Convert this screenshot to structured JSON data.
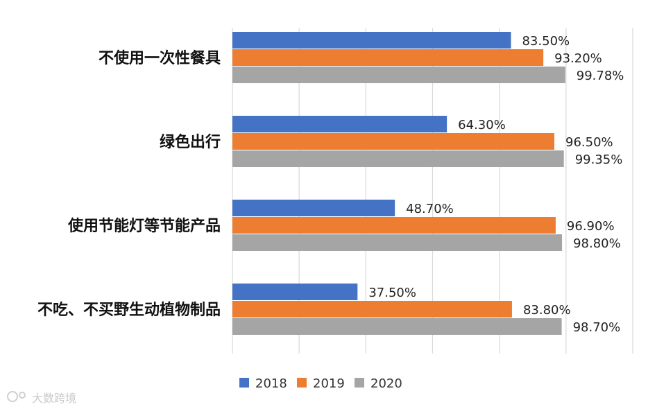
{
  "chart_data": {
    "type": "bar",
    "orientation": "horizontal",
    "categories": [
      "不使用一次性餐具",
      "绿色出行",
      "使用节能灯等节能产品",
      "不吃、不买野生动植物制品"
    ],
    "series": [
      {
        "name": "2018",
        "color": "#4472C4",
        "values": [
          83.5,
          64.3,
          48.7,
          37.5
        ],
        "labels": [
          "83.50%",
          "64.30%",
          "48.70%",
          "37.50%"
        ]
      },
      {
        "name": "2019",
        "color": "#ED7D31",
        "values": [
          93.2,
          96.5,
          96.9,
          83.8
        ],
        "labels": [
          "93.20%",
          "96.50%",
          "96.90%",
          "83.80%"
        ]
      },
      {
        "name": "2020",
        "color": "#A5A5A5",
        "values": [
          99.78,
          99.35,
          98.8,
          98.7
        ],
        "labels": [
          "99.78%",
          "99.35%",
          "98.80%",
          "98.70%"
        ]
      }
    ],
    "xlim": [
      0,
      120
    ],
    "gridlines": "vertical",
    "legend_position": "bottom-center",
    "title": "",
    "xlabel": "",
    "ylabel": ""
  },
  "watermark": {
    "text": "大数跨境"
  }
}
